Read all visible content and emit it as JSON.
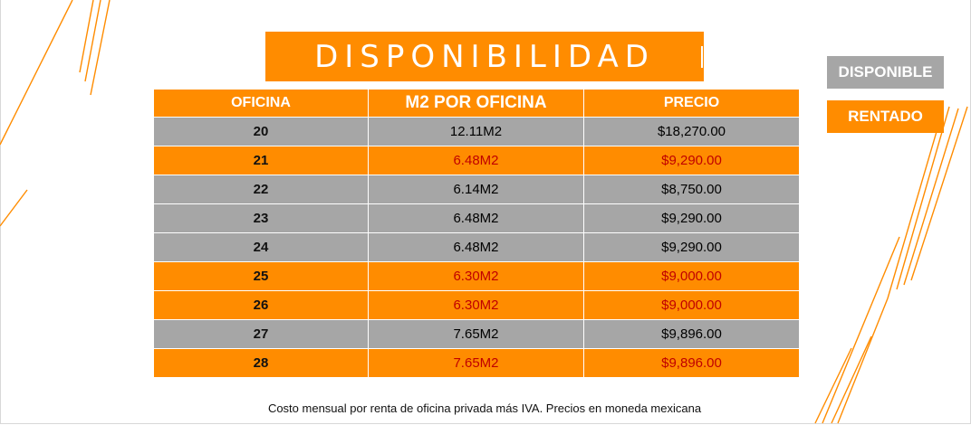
{
  "title": "DISPONIBILIDAD",
  "legend": {
    "available": "DISPONIBLE",
    "rented": "RENTADO"
  },
  "table": {
    "headers": {
      "office": "OFICINA",
      "m2": "M2 POR OFICINA",
      "price": "PRECIO"
    },
    "rows": [
      {
        "office": "20",
        "m2": "12.11M2",
        "price": "$18,270.00",
        "status": "disponible"
      },
      {
        "office": "21",
        "m2": "6.48M2",
        "price": "$9,290.00",
        "status": "rentado"
      },
      {
        "office": "22",
        "m2": "6.14M2",
        "price": "$8,750.00",
        "status": "disponible"
      },
      {
        "office": "23",
        "m2": "6.48M2",
        "price": "$9,290.00",
        "status": "disponible"
      },
      {
        "office": "24",
        "m2": "6.48M2",
        "price": "$9,290.00",
        "status": "disponible"
      },
      {
        "office": "25",
        "m2": "6.30M2",
        "price": "$9,000.00",
        "status": "rentado"
      },
      {
        "office": "26",
        "m2": "6.30M2",
        "price": "$9,000.00",
        "status": "rentado"
      },
      {
        "office": "27",
        "m2": "7.65M2",
        "price": "$9,896.00",
        "status": "disponible"
      },
      {
        "office": "28",
        "m2": "7.65M2",
        "price": "$9,896.00",
        "status": "rentado"
      }
    ]
  },
  "footnote": "Costo mensual por renta de oficina privada más IVA. Precios en moneda mexicana",
  "colors": {
    "accent": "#ff8c00",
    "available": "#a6a6a6",
    "rented_text": "#c00000"
  }
}
